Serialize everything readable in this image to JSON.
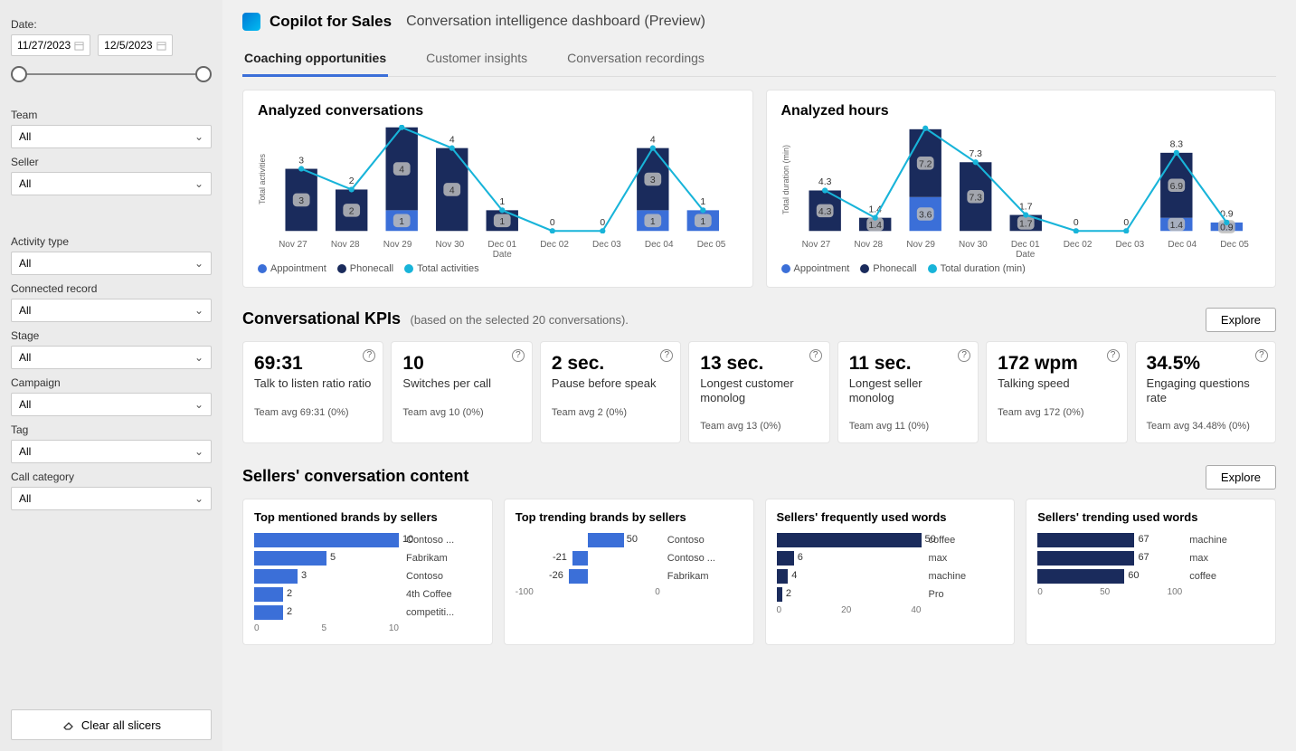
{
  "sidebar": {
    "date_label": "Date:",
    "date_from": "11/27/2023",
    "date_to": "12/5/2023",
    "filters": [
      {
        "label": "Team",
        "value": "All"
      },
      {
        "label": "Seller",
        "value": "All"
      }
    ],
    "filters2": [
      {
        "label": "Activity type",
        "value": "All"
      },
      {
        "label": "Connected record",
        "value": "All"
      },
      {
        "label": "Stage",
        "value": "All"
      },
      {
        "label": "Campaign",
        "value": "All"
      },
      {
        "label": "Tag",
        "value": "All"
      },
      {
        "label": "Call category",
        "value": "All"
      }
    ],
    "clear_label": "Clear all slicers"
  },
  "header": {
    "title": "Copilot for Sales",
    "subtitle": "Conversation intelligence dashboard  (Preview)"
  },
  "tabs": [
    "Coaching opportunities",
    "Customer insights",
    "Conversation recordings"
  ],
  "charts": {
    "conversations": {
      "title": "Analyzed conversations",
      "ylabel": "Total activities",
      "xlabel": "Date",
      "ymax": 5,
      "categories": [
        "Nov 27",
        "Nov 28",
        "Nov 29",
        "Nov 30",
        "Dec 01",
        "Dec 02",
        "Dec 03",
        "Dec 04",
        "Dec 05"
      ],
      "appointment": [
        0,
        0,
        1,
        0,
        0,
        0,
        0,
        1,
        1
      ],
      "phonecall": [
        3,
        2,
        4,
        4,
        1,
        0,
        0,
        3,
        0
      ],
      "line": [
        3,
        2,
        5,
        4,
        1,
        0,
        0,
        4,
        1
      ],
      "colors": {
        "appointment": "#3b6fd8",
        "phonecall": "#1a2b5c",
        "line": "#18b4d9"
      },
      "legend": [
        "Appointment",
        "Phonecall",
        "Total activities"
      ]
    },
    "hours": {
      "title": "Analyzed hours",
      "ylabel": "Total duration (min)",
      "xlabel": "Date",
      "ymax": 11,
      "categories": [
        "Nov 27",
        "Nov 28",
        "Nov 29",
        "Nov 30",
        "Dec 01",
        "Dec 02",
        "Dec 03",
        "Dec 04",
        "Dec 05"
      ],
      "appointment": [
        0,
        0,
        3.6,
        0,
        0,
        0,
        0,
        1.4,
        0.9
      ],
      "phonecall": [
        4.3,
        1.4,
        7.2,
        7.3,
        1.7,
        0,
        0,
        6.9,
        0
      ],
      "line": [
        4.3,
        1.4,
        10.9,
        7.3,
        1.7,
        0,
        0,
        8.3,
        0.9
      ],
      "colors": {
        "appointment": "#3b6fd8",
        "phonecall": "#1a2b5c",
        "line": "#18b4d9"
      },
      "legend": [
        "Appointment",
        "Phonecall",
        "Total duration (min)"
      ]
    }
  },
  "kpi_section": {
    "title": "Conversational KPIs",
    "subtitle": "(based on the selected 20 conversations).",
    "explore": "Explore",
    "items": [
      {
        "value": "69:31",
        "label": "Talk to listen ratio ratio",
        "avg": "Team avg 69:31  (0%)"
      },
      {
        "value": "10",
        "label": "Switches per call",
        "avg": "Team avg 10  (0%)"
      },
      {
        "value": "2 sec.",
        "label": "Pause before speak",
        "avg": "Team avg 2  (0%)"
      },
      {
        "value": "13 sec.",
        "label": "Longest customer monolog",
        "avg": "Team avg 13  (0%)"
      },
      {
        "value": "11 sec.",
        "label": "Longest seller monolog",
        "avg": "Team avg 11  (0%)"
      },
      {
        "value": "172 wpm",
        "label": "Talking speed",
        "avg": "Team avg 172  (0%)"
      },
      {
        "value": "34.5%",
        "label": "Engaging questions rate",
        "avg": "Team avg 34.48%  (0%)"
      }
    ]
  },
  "content_section": {
    "title": "Sellers' conversation content",
    "explore": "Explore",
    "cards": [
      {
        "title": "Top mentioned brands by sellers",
        "type": "left",
        "color": "#3b6fd8",
        "max": 10,
        "items": [
          {
            "v": 10,
            "l": "Contoso ..."
          },
          {
            "v": 5,
            "l": "Fabrikam"
          },
          {
            "v": 3,
            "l": "Contoso"
          },
          {
            "v": 2,
            "l": "4th Coffee"
          },
          {
            "v": 2,
            "l": "competiti..."
          }
        ],
        "axis": [
          "0",
          "5",
          "10"
        ]
      },
      {
        "title": "Top trending brands by sellers",
        "type": "diverge",
        "color": "#3b6fd8",
        "min": -100,
        "max": 100,
        "items": [
          {
            "v": 50,
            "l": "Contoso"
          },
          {
            "v": -21,
            "l": "Contoso ..."
          },
          {
            "v": -26,
            "l": "Fabrikam"
          }
        ],
        "axis": [
          "-100",
          "0"
        ]
      },
      {
        "title": "Sellers' frequently used words",
        "type": "left",
        "color": "#1a2b5c",
        "max": 50,
        "items": [
          {
            "v": 50,
            "l": "coffee"
          },
          {
            "v": 6,
            "l": "max"
          },
          {
            "v": 4,
            "l": "machine"
          },
          {
            "v": 2,
            "l": "Pro"
          }
        ],
        "axis": [
          "0",
          "20",
          "40"
        ]
      },
      {
        "title": "Sellers' trending used words",
        "type": "left",
        "color": "#1a2b5c",
        "max": 100,
        "items": [
          {
            "v": 67,
            "l": "machine"
          },
          {
            "v": 67,
            "l": "max"
          },
          {
            "v": 60,
            "l": "coffee"
          }
        ],
        "axis": [
          "0",
          "50",
          "100"
        ]
      }
    ]
  }
}
